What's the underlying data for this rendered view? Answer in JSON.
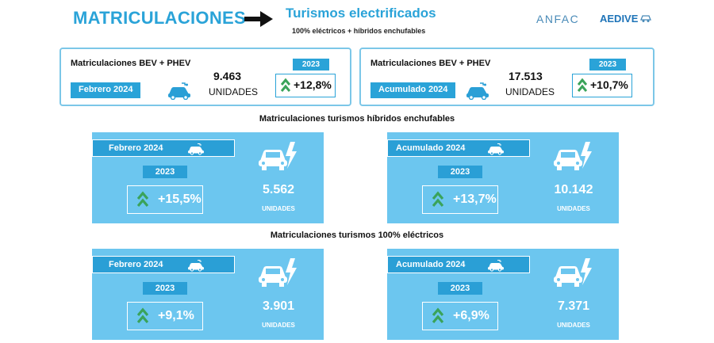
{
  "header": {
    "title": "MATRICULACIONES",
    "subtitle": "Turismos electrificados",
    "subtitle2": "100% eléctricos + híbridos enchufables",
    "logo_anfac": "ANFAC",
    "logo_aedive": "AEDIVE"
  },
  "summary": [
    {
      "label": "Matriculaciones BEV + PHEV",
      "period": "Febrero 2024",
      "value": "9.463",
      "units": "UNIDADES",
      "year": "2023",
      "change": "+12,8%"
    },
    {
      "label": "Matriculaciones BEV + PHEV",
      "period": "Acumulado 2024",
      "value": "17.513",
      "units": "UNIDADES",
      "year": "2023",
      "change": "+10,7%"
    }
  ],
  "sections": [
    {
      "title": "Matriculaciones turismos híbridos enchufables",
      "panels": [
        {
          "period": "Febrero 2024",
          "year": "2023",
          "change": "+15,5%",
          "value": "5.562",
          "units": "UNIDADES"
        },
        {
          "period": "Acumulado 2024",
          "year": "2023",
          "change": "+13,7%",
          "value": "10.142",
          "units": "UNIDADES"
        }
      ]
    },
    {
      "title": "Matriculaciones turismos 100% eléctricos",
      "panels": [
        {
          "period": "Febrero 2024",
          "year": "2023",
          "change": "+9,1%",
          "value": "3.901",
          "units": "UNIDADES"
        },
        {
          "period": "Acumulado 2024",
          "year": "2023",
          "change": "+6,9%",
          "value": "7.371",
          "units": "UNIDADES"
        }
      ]
    }
  ],
  "colors": {
    "accent": "#2aa3d8",
    "panel": "#6cc6ef",
    "chevron": "#3aa35a"
  },
  "icons": {
    "arrow": "right-arrow-icon",
    "car": "electric-car-icon",
    "chevron": "double-chevron-up-icon"
  }
}
